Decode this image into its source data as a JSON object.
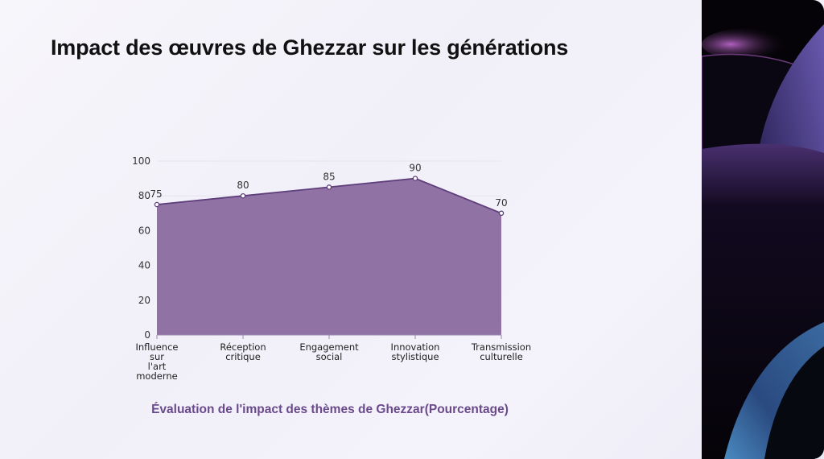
{
  "title": "Impact des œuvres de Ghezzar sur les générations",
  "chart_data": {
    "type": "area",
    "title": "Évaluation de l'impact des thèmes de Ghezzar(Pourcentage)",
    "categories": [
      [
        "Influence",
        "sur",
        "l'art",
        "moderne"
      ],
      [
        "Réception",
        "critique"
      ],
      [
        "Engagement",
        "social"
      ],
      [
        "Innovation",
        "stylistique"
      ],
      [
        "Transmission",
        "culturelle"
      ]
    ],
    "values": [
      75,
      80,
      85,
      90,
      70
    ],
    "ylim": [
      0,
      100
    ],
    "yticks": [
      0,
      20,
      40,
      60,
      80,
      100
    ],
    "xlabel": "",
    "ylabel": "",
    "grid": true,
    "colors": {
      "fill": "#8a6aa0",
      "line": "#5e3f7c",
      "caption": "#6a4a8c"
    }
  }
}
